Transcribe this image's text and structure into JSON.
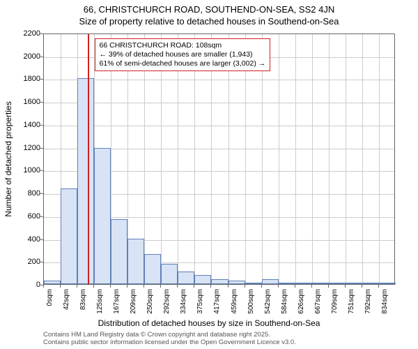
{
  "titles": {
    "line1": "66, CHRISTCHURCH ROAD, SOUTHEND-ON-SEA, SS2 4JN",
    "line2": "Size of property relative to detached houses in Southend-on-Sea"
  },
  "axes": {
    "ylabel": "Number of detached properties",
    "xlabel": "Distribution of detached houses by size in Southend-on-Sea",
    "ylim": [
      0,
      2200
    ],
    "ytick_step": 200,
    "yticks": [
      0,
      200,
      400,
      600,
      800,
      1000,
      1200,
      1400,
      1600,
      1800,
      2000,
      2200
    ],
    "xtick_labels": [
      "0sqm",
      "42sqm",
      "83sqm",
      "125sqm",
      "167sqm",
      "209sqm",
      "250sqm",
      "292sqm",
      "334sqm",
      "375sqm",
      "417sqm",
      "459sqm",
      "500sqm",
      "542sqm",
      "584sqm",
      "626sqm",
      "667sqm",
      "709sqm",
      "751sqm",
      "792sqm",
      "834sqm"
    ],
    "xlim_bins": 21,
    "label_fontsize": 12,
    "tick_fontsize": 11
  },
  "histogram": {
    "type": "histogram",
    "bar_color": "#d8e3f5",
    "bar_border": "#6080b8",
    "values": [
      30,
      840,
      1800,
      1190,
      570,
      400,
      260,
      180,
      110,
      80,
      40,
      30,
      10,
      40,
      8,
      6,
      5,
      4,
      3,
      3,
      2
    ]
  },
  "reference": {
    "x_bin": 2.6,
    "line_color": "#d02020",
    "box_border": "#d02020",
    "lines": {
      "l1": "66 CHRISTCHURCH ROAD: 108sqm",
      "l2": "← 39% of detached houses are smaller (1,943)",
      "l3": "61% of semi-detached houses are larger (3,002) →"
    }
  },
  "grid": {
    "color": "#cccccc"
  },
  "footnote": {
    "l1": "Contains HM Land Registry data © Crown copyright and database right 2025.",
    "l2": "Contains public sector information licensed under the Open Government Licence v3.0."
  },
  "colors": {
    "background": "#ffffff",
    "axis": "#666666",
    "text": "#000000"
  }
}
